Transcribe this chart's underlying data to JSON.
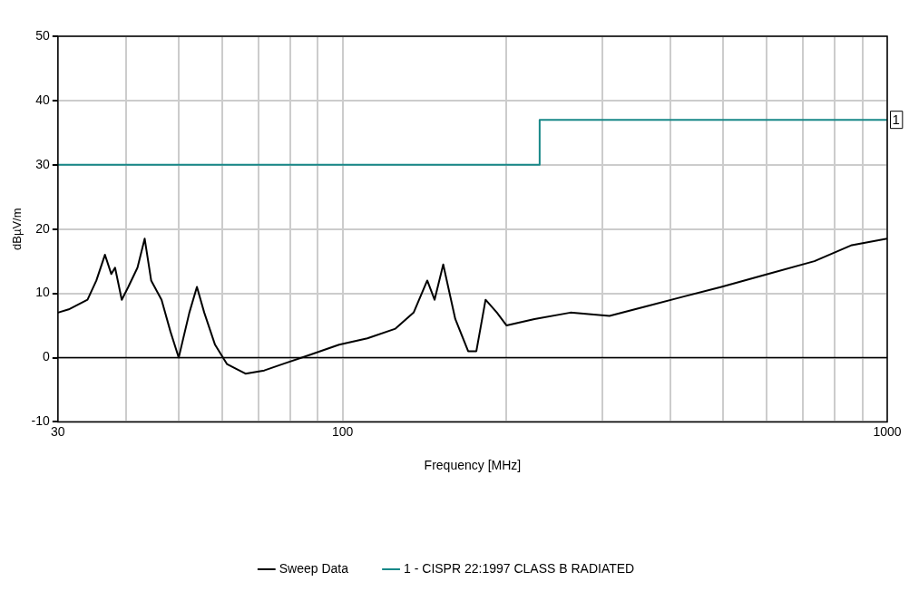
{
  "chart_data": {
    "type": "line",
    "xlabel": "Frequency [MHz]",
    "ylabel": "dBµV/m",
    "log": "x",
    "grid": true,
    "legend": "bottom",
    "xlim": [
      30,
      1000
    ],
    "ylim": [
      -10,
      50
    ],
    "xticks": [
      30,
      {
        "value": 40,
        "label": null
      },
      {
        "value": 50,
        "label": null
      },
      {
        "value": 60,
        "label": null
      },
      {
        "value": 70,
        "label": null
      },
      {
        "value": 80,
        "label": null
      },
      {
        "value": 90,
        "label": null
      },
      100,
      {
        "value": 200,
        "label": null
      },
      {
        "value": 300,
        "label": null
      },
      {
        "value": 400,
        "label": null
      },
      {
        "value": 500,
        "label": null
      },
      {
        "value": 600,
        "label": null
      },
      {
        "value": 700,
        "label": null
      },
      {
        "value": 800,
        "label": null
      },
      {
        "value": 900,
        "label": null
      },
      1000
    ],
    "yticks": [
      -10,
      0,
      10,
      20,
      30,
      40,
      50
    ],
    "series": [
      {
        "name": "Sweep Data",
        "color": "#000000",
        "x": [
          30,
          31.4,
          34,
          35.3,
          36.6,
          37.6,
          38.2,
          39.3,
          40.4,
          42,
          43.3,
          44.5,
          46.5,
          48.3,
          50,
          52.3,
          54,
          55.7,
          58.3,
          61.3,
          66.3,
          71.8,
          77.6,
          87.5,
          98.5,
          111,
          125,
          135,
          143,
          147.5,
          153,
          161,
          170,
          176,
          183,
          192,
          200,
          225,
          262,
          309,
          362,
          423,
          496,
          604,
          735,
          861,
          1000
        ],
        "values": [
          7,
          7.5,
          9,
          12,
          16,
          13,
          14,
          9,
          11,
          14,
          18.5,
          12,
          9,
          4,
          0,
          7,
          11,
          7,
          2,
          -1,
          -2.5,
          -2,
          -1,
          0.5,
          2,
          3,
          4.5,
          7,
          12,
          9,
          14.5,
          6,
          1,
          1,
          9,
          7,
          5,
          6,
          7,
          6.5,
          8,
          9.5,
          11,
          13,
          15,
          17.5,
          18.5
        ]
      },
      {
        "name": "1 - CISPR 22:1997 CLASS B RADIATED",
        "type": "step",
        "color": "#178888",
        "x": [
          30,
          230,
          1000
        ],
        "values": [
          30,
          37,
          37
        ]
      }
    ],
    "ref_lines": [
      {
        "axis": "y",
        "value": 0,
        "color": "#000000"
      }
    ],
    "annotations": [
      {
        "text": "1",
        "x": 1000,
        "y": 37
      }
    ]
  }
}
